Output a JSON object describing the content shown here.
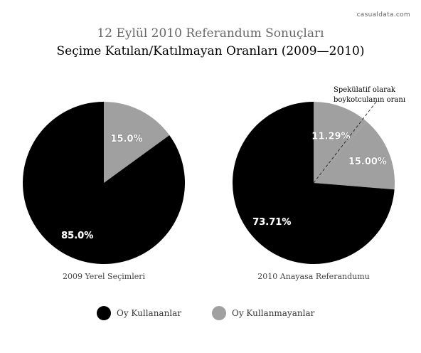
{
  "watermark": "casualdata.com",
  "title": "12 Eylül 2010 Referandum Sonuçları",
  "subtitle": "Seçime Katılan/Katılmayan Oranları (2009—2010)",
  "colors": {
    "participated": "#000000",
    "not_participated": "#a0a0a0",
    "label_text": "#ffffff"
  },
  "chart_data": [
    {
      "type": "pie",
      "title": "2009 Yerel Seçimleri",
      "slices": [
        {
          "label": "Oy Kullananlar",
          "value": 85.0,
          "display": "85.0%"
        },
        {
          "label": "Oy Kullanmayanlar",
          "value": 15.0,
          "display": "15.0%"
        }
      ]
    },
    {
      "type": "pie",
      "title": "2010 Anayasa Referandumu",
      "slices": [
        {
          "label": "Oy Kullananlar",
          "value": 73.71,
          "display": "73.71%"
        },
        {
          "label": "Oy Kullanmayanlar",
          "value": 15.0,
          "display": "15.00%"
        },
        {
          "label": "Oy Kullanmayanlar",
          "value": 11.29,
          "display": "11.29%"
        }
      ],
      "annotation": [
        "Spekülatif olarak",
        "boykotculanın oranı"
      ]
    }
  ],
  "legend": [
    {
      "label": "Oy Kullananlar",
      "color": "#000000"
    },
    {
      "label": "Oy Kullanmayanlar",
      "color": "#a0a0a0"
    }
  ]
}
